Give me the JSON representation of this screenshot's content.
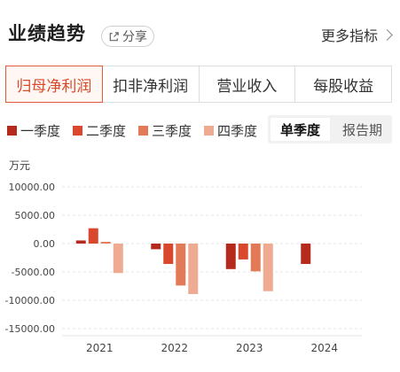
{
  "header": {
    "title": "业绩趋势",
    "share_label": "分享",
    "more_label": "更多指标"
  },
  "tabs": [
    {
      "label": "归母净利润",
      "active": true
    },
    {
      "label": "扣非净利润",
      "active": false
    },
    {
      "label": "营业收入",
      "active": false
    },
    {
      "label": "每股收益",
      "active": false
    }
  ],
  "period_toggle": {
    "options": [
      "单季度",
      "报告期"
    ],
    "selected": "单季度"
  },
  "chart_data": {
    "type": "bar",
    "unit": "万元",
    "categories": [
      "2021",
      "2022",
      "2023",
      "2024"
    ],
    "series": [
      {
        "name": "一季度",
        "color": "#b52a1c",
        "values": [
          550,
          -1000,
          -4500,
          -3600
        ]
      },
      {
        "name": "二季度",
        "color": "#d9472c",
        "values": [
          2700,
          -3600,
          -2800,
          null
        ]
      },
      {
        "name": "三季度",
        "color": "#e27a57",
        "values": [
          300,
          -7400,
          -4900,
          null
        ]
      },
      {
        "name": "四季度",
        "color": "#efaa92",
        "values": [
          -5200,
          -8900,
          -8400,
          null
        ]
      }
    ],
    "yticks": [
      10000,
      5000,
      0,
      -5000,
      -10000,
      -15000
    ],
    "ytick_labels": [
      "10000.00",
      "5000.00",
      "0.00",
      "-5000.00",
      "-10000.00",
      "-15000.00"
    ],
    "ylim": [
      -15000,
      10000
    ],
    "legend_position": "top-left",
    "grid": true
  }
}
